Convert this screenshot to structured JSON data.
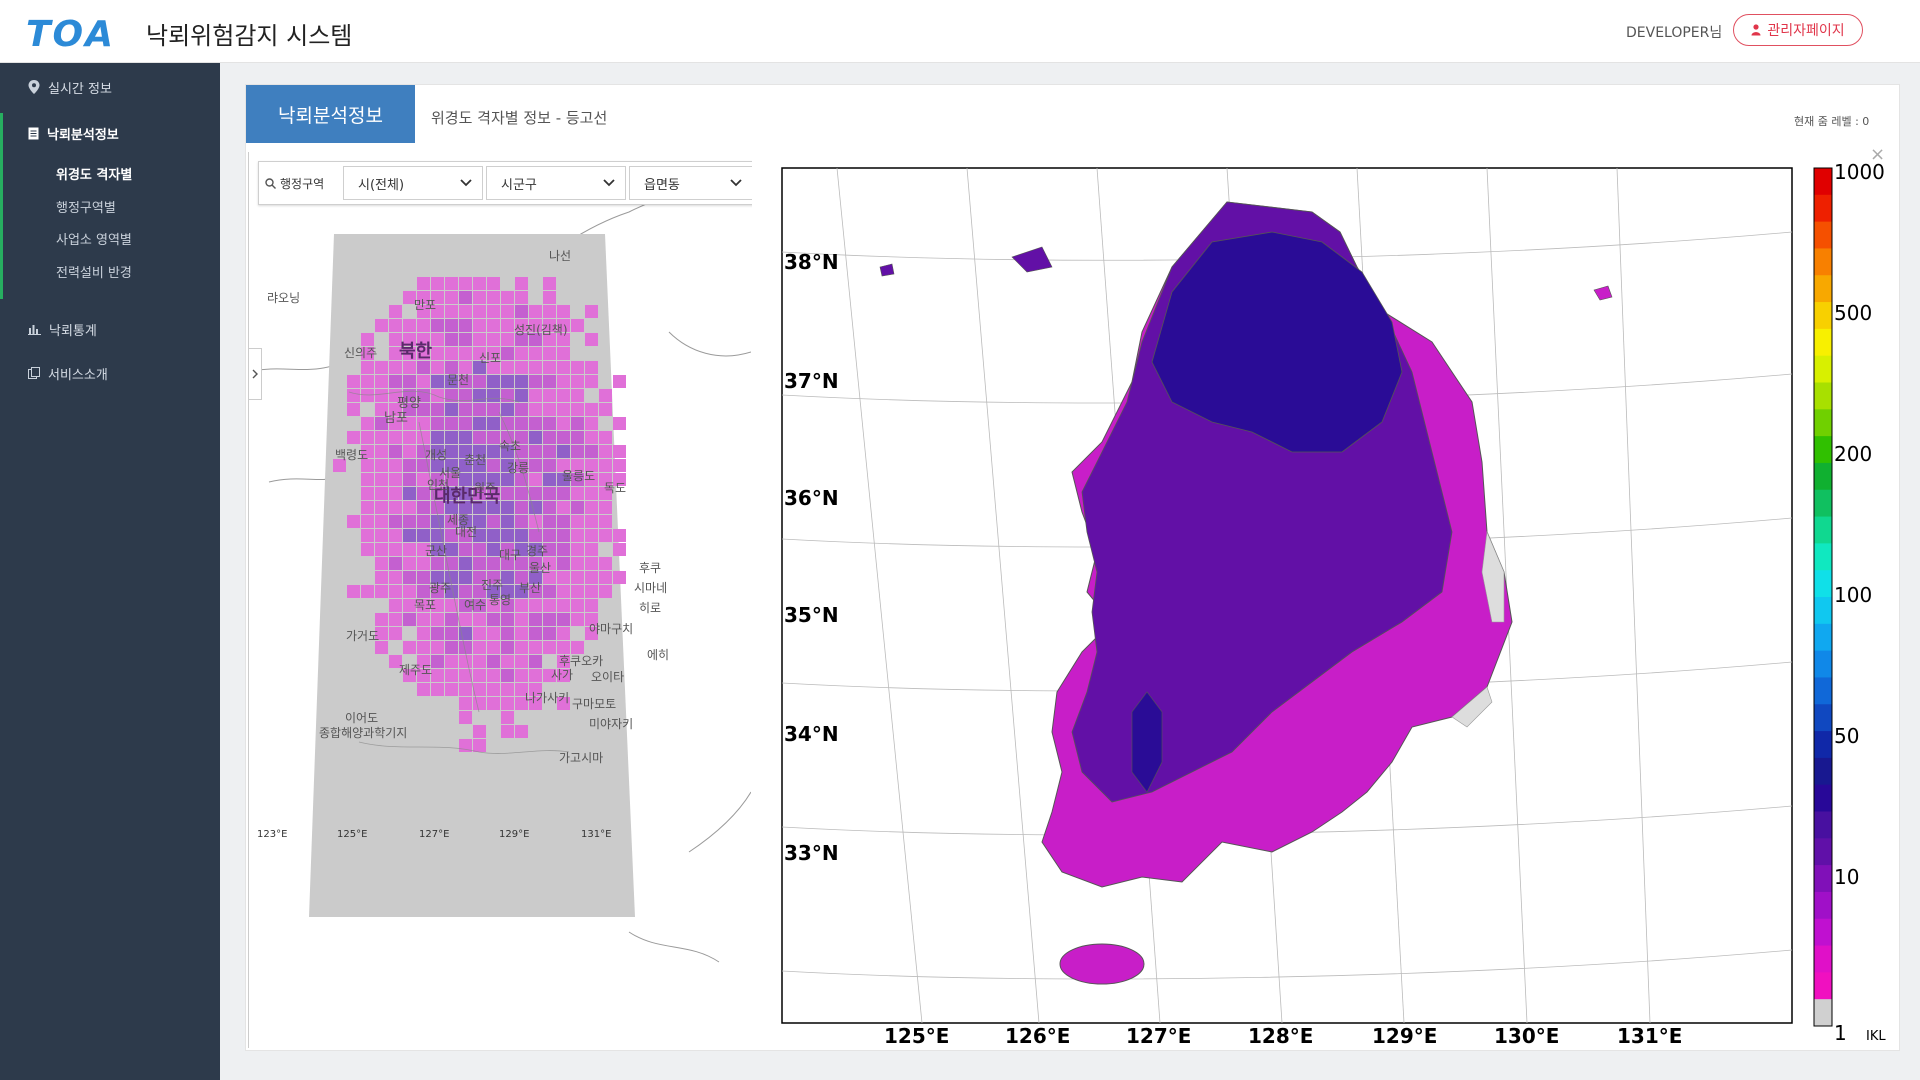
{
  "header": {
    "logo": "TOA",
    "title": "낙뢰위험감지 시스템",
    "user": "DEVELOPER님",
    "admin_button": "관리자페이지"
  },
  "sidebar": {
    "items": [
      {
        "label": "실시간 정보",
        "icon": "map-pin-icon"
      },
      {
        "label": "낙뢰분석정보",
        "icon": "document-icon",
        "active": true,
        "sub": [
          {
            "label": "위경도 격자별",
            "active": true
          },
          {
            "label": "행정구역별"
          },
          {
            "label": "사업소 영역별"
          },
          {
            "label": "전력설비 반경"
          }
        ]
      },
      {
        "label": "낙뢰통계",
        "icon": "bar-chart-icon"
      },
      {
        "label": "서비스소개",
        "icon": "copy-icon"
      }
    ]
  },
  "content": {
    "tab_title": "낙뢰분석정보",
    "subtitle": "위경도 격자별 정보 - 등고선",
    "zoom_level": "현재 줌 레벨 : 0"
  },
  "filter": {
    "label": "행정구역",
    "city": "시(전체)",
    "district": "시군구",
    "town": "읍면동"
  },
  "left_map": {
    "labels": [
      "북한",
      "대한민국",
      "평양",
      "남포",
      "신의주",
      "문천",
      "만포",
      "나선",
      "성진(김책)",
      "신포",
      "랴오닝",
      "백령도",
      "개성",
      "서울",
      "인천",
      "춘천",
      "원주",
      "속초",
      "강릉",
      "울릉도",
      "독도",
      "세종",
      "대전",
      "군산",
      "대구",
      "경주",
      "울산",
      "광주",
      "진주",
      "부산",
      "목포",
      "여수",
      "통영",
      "가거도",
      "제주도",
      "이어도",
      "종합해양과학기지",
      "후쿠",
      "시마네",
      "히로",
      "야마구치",
      "에히",
      "후쿠오카",
      "사가",
      "오이타",
      "나가사키",
      "미야자키",
      "가고시마",
      "구마모토"
    ],
    "lon_ticks": [
      "123°E",
      "125°E",
      "127°E",
      "129°E",
      "131°E"
    ]
  },
  "contour_map": {
    "lat_labels": [
      "38°N",
      "37°N",
      "36°N",
      "35°N",
      "34°N",
      "33°N"
    ],
    "lon_labels": [
      "125°E",
      "126°E",
      "127°E",
      "128°E",
      "129°E",
      "130°E",
      "131°E"
    ],
    "colorbar": {
      "tick_labels": [
        "1000",
        "500",
        "200",
        "100",
        "50",
        "10",
        "1"
      ],
      "unit": "IKL",
      "colors": [
        "#e00000",
        "#ee2000",
        "#f55000",
        "#f88000",
        "#f8a800",
        "#f8d000",
        "#f8f000",
        "#d8f000",
        "#a8e000",
        "#70d000",
        "#30c000",
        "#10b030",
        "#10c060",
        "#10d890",
        "#10e8c0",
        "#10e0e8",
        "#10c8f0",
        "#10a8f0",
        "#1088e8",
        "#1068d8",
        "#1048c0",
        "#1028a8",
        "#181890",
        "#280898",
        "#4810a0",
        "#6010a8",
        "#8010b8",
        "#a010c8",
        "#c010d0",
        "#e010c8",
        "#f010c0",
        "#d0d0d0"
      ]
    }
  }
}
